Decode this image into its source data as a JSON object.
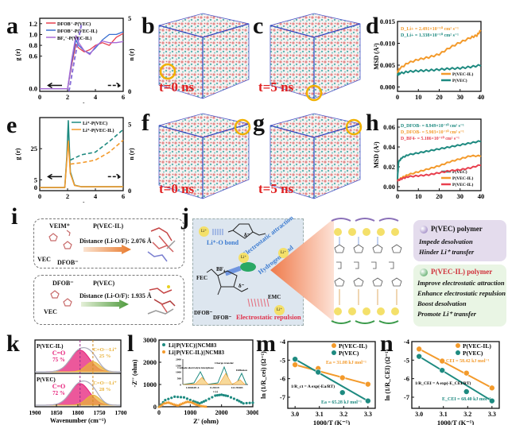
{
  "panels": {
    "a": "a",
    "b": "b",
    "c": "c",
    "d": "d",
    "e": "e",
    "f": "f",
    "g": "g",
    "h": "h",
    "i": "i",
    "j": "j",
    "k": "k",
    "l": "l",
    "m": "m",
    "n": "n"
  },
  "snapshots": {
    "b_time": "t=0 ns",
    "c_time": "t=5 ns",
    "f_time": "t=0 ns",
    "g_time": "t=5 ns"
  },
  "panel_i": {
    "top": {
      "label_a": "VEIM⁺",
      "label_b": "VEC",
      "label_c": "DFOB⁻",
      "title": "P(VEC-IL)",
      "distance": "Distance (Li-O/F): 2.076 Å"
    },
    "bottom": {
      "label_a": "DFOB⁻",
      "label_b": "VEC",
      "title": "P(VEC)",
      "distance": "Distance (Li-O/F): 1.935 Å"
    }
  },
  "panel_j": {
    "li": "Li⁺",
    "li_o_bond": "Li⁺-O bond",
    "electrostatic_attraction": "Electrostatic attraction",
    "hydrogen_bond": "Hydrogen bond",
    "electrostatic_repulsion": "Electrostatic repulsion",
    "fec": "FEC",
    "dfob1": "DFOB⁻",
    "dfob2": "DFOB⁻",
    "emc": "EMC",
    "bf4": "BF₄",
    "delta_neg": "δ⁻",
    "delta_neg2": "δ⁻"
  },
  "panel_j_boxes": {
    "pvec": {
      "title": "P(VEC) polymer",
      "items": [
        "Impede desolvation",
        "Hinder Li⁺ transfer"
      ]
    },
    "pvecil": {
      "title": "P(VEC-IL) polymer",
      "items": [
        "Improve electrostatic attraction",
        "Enhance electrostatic repulsion",
        "Boost desolvation",
        "Promote Li⁺ transfer"
      ]
    }
  },
  "colors": {
    "teal": "#1e8a80",
    "orange": "#f39a2b",
    "red": "#e8404f",
    "purple": "#a86ad6",
    "blue": "#3a6fd0",
    "pink": "#e6207a",
    "gold": "#e9b23a",
    "snap_red": "#e02020",
    "ring": "#f0b000"
  },
  "chart_data": [
    {
      "id": "a",
      "type": "line",
      "xlabel": "r (Å)",
      "ylabel": "g (r)",
      "y2label": "n (r)",
      "xlim": [
        0,
        6
      ],
      "ylim": [
        -0.05,
        1.3
      ],
      "y2lim": [
        0,
        5
      ],
      "xticks": [
        "0",
        "2",
        "4",
        "6"
      ],
      "yticks": [
        "0.0",
        "0.6",
        "0.8",
        "1.0",
        "1.2"
      ],
      "y2ticks": [
        "0",
        "5"
      ],
      "series": [
        {
          "name": "DFOB⁻-P(VEC)",
          "color": "#e8404f",
          "x": [
            0,
            2.0,
            2.3,
            2.6,
            2.8,
            3.2,
            3.6,
            4.0,
            4.5,
            5.0,
            5.5,
            6.0
          ],
          "y": [
            0,
            0,
            0.45,
            0.82,
            0.75,
            0.68,
            0.72,
            0.8,
            0.85,
            0.8,
            0.95,
            1.02
          ]
        },
        {
          "name": "DFOB⁻-P(VEC-IL)",
          "color": "#3a6fd0",
          "x": [
            0,
            2.0,
            2.3,
            2.6,
            2.8,
            3.2,
            3.6,
            4.0,
            4.5,
            5.0,
            5.5,
            6.0
          ],
          "y": [
            0,
            0,
            0.5,
            0.9,
            0.8,
            0.7,
            0.65,
            0.75,
            0.9,
            1.0,
            1.0,
            1.05
          ]
        },
        {
          "name": "BF₄⁻-P(VEC-IL)",
          "color": "#a86ad6",
          "x": [
            0,
            2.0,
            2.3,
            2.6,
            2.8,
            3.2,
            3.6,
            4.0,
            4.5,
            5.0,
            5.5,
            6.0
          ],
          "y": [
            0,
            0,
            0.55,
            0.98,
            0.85,
            0.7,
            0.63,
            0.78,
            0.88,
            0.85,
            0.85,
            0.87
          ]
        }
      ]
    },
    {
      "id": "d",
      "type": "line",
      "xlabel": "Time (ns)",
      "ylabel": "MSD (Å²)",
      "xlim": [
        0,
        40
      ],
      "ylim": [
        -0.001,
        0.015
      ],
      "xticks": [
        "0",
        "10",
        "20",
        "30",
        "40"
      ],
      "yticks": [
        "0.000",
        "0.005",
        "0.010",
        "0.015"
      ],
      "annotations": [
        "D_Li+ = 2.491×10⁻¹⁰ cm² s⁻¹",
        "D_Li+ = 1.338×10⁻¹⁰ cm² s⁻¹"
      ],
      "series": [
        {
          "name": "P(VEC-IL)",
          "color": "#f39a2b",
          "x": [
            0,
            1,
            5,
            10,
            15,
            20,
            25,
            30,
            35,
            38,
            40
          ],
          "y": [
            0.0033,
            0.0042,
            0.0055,
            0.0063,
            0.0068,
            0.0075,
            0.009,
            0.0102,
            0.0113,
            0.0118,
            0.013
          ]
        },
        {
          "name": "P(VEC)",
          "color": "#1e8a80",
          "x": [
            0,
            1,
            5,
            10,
            15,
            20,
            25,
            30,
            35,
            40
          ],
          "y": [
            0.0028,
            0.0031,
            0.0035,
            0.0037,
            0.0038,
            0.004,
            0.0042,
            0.0043,
            0.0046,
            0.005
          ]
        }
      ]
    },
    {
      "id": "e",
      "type": "line",
      "xlabel": "r (Å)",
      "ylabel": "g (r)",
      "y2label": "n (r)",
      "xlim": [
        0,
        6
      ],
      "ylim": [
        -2,
        45
      ],
      "y2lim": [
        0,
        5.5
      ],
      "xticks": [
        "0",
        "2",
        "4",
        "6"
      ],
      "yticks": [
        "0",
        "5",
        "25"
      ],
      "y2ticks": [
        "0",
        "5"
      ],
      "series": [
        {
          "name": "Li⁺-P(VEC)",
          "color": "#1e8a80",
          "x": [
            0,
            1.8,
            1.95,
            2.05,
            2.2,
            2.5,
            3,
            6
          ],
          "y": [
            0,
            0,
            20,
            43,
            10,
            1.5,
            0.5,
            0.5
          ]
        },
        {
          "name": "Li⁺-P(VEC-IL)",
          "color": "#f39a2b",
          "x": [
            0,
            1.8,
            1.95,
            2.05,
            2.2,
            2.5,
            3,
            6
          ],
          "y": [
            0,
            0,
            18,
            30,
            9,
            1.3,
            0.5,
            0.5
          ]
        }
      ]
    },
    {
      "id": "h",
      "type": "line",
      "xlabel": "Time (ns)",
      "ylabel": "MSD (Å²)",
      "xlim": [
        0,
        40
      ],
      "ylim": [
        -0.004,
        0.068
      ],
      "xticks": [
        "0",
        "10",
        "20",
        "30",
        "40"
      ],
      "yticks": [
        "0.00",
        "0.02",
        "0.04",
        "0.06"
      ],
      "annotations": [
        "D_DFOB- = 8.949×10⁻¹⁰ cm² s⁻¹",
        "D_DFOB- = 5.903×10⁻¹⁰ cm² s⁻¹",
        "D_BF4- = 5.186×10⁻¹⁰ cm² s⁻¹"
      ],
      "series": [
        {
          "name": "P(VEC)",
          "color": "#1e8a80",
          "x": [
            0,
            0.5,
            2,
            5,
            10,
            15,
            20,
            25,
            30,
            35,
            40
          ],
          "y": [
            0.008,
            0.025,
            0.029,
            0.032,
            0.034,
            0.036,
            0.038,
            0.04,
            0.042,
            0.044,
            0.046
          ]
        },
        {
          "name": "P(VEC-IL)",
          "color": "#f39a2b",
          "x": [
            0,
            2,
            5,
            10,
            15,
            20,
            25,
            30,
            35,
            40
          ],
          "y": [
            0.006,
            0.009,
            0.012,
            0.015,
            0.018,
            0.021,
            0.025,
            0.028,
            0.031,
            0.031
          ]
        },
        {
          "name": "P(VEC-IL)",
          "color": "#e8404f",
          "x": [
            0,
            2,
            5,
            10,
            15,
            20,
            25,
            30,
            35,
            40
          ],
          "y": [
            0.006,
            0.008,
            0.01,
            0.011,
            0.012,
            0.014,
            0.016,
            0.017,
            0.019,
            0.022
          ]
        }
      ]
    },
    {
      "id": "k",
      "type": "area",
      "xlabel": "Wavenumber (cm⁻¹)",
      "xlim": [
        1900,
        1700
      ],
      "xticks": [
        "1900",
        "1850",
        "1800",
        "1750",
        "1700"
      ],
      "subplots": [
        {
          "name": "P(VEC-IL)",
          "peaks": [
            {
              "label": "C=O",
              "pct": "75 %",
              "center": 1795,
              "color": "#e6207a"
            },
            {
              "label": "C=O···Li⁺",
              "pct": "25 %",
              "center": 1765,
              "color": "#e9b23a"
            }
          ]
        },
        {
          "name": "P(VEC)",
          "peaks": [
            {
              "label": "C=O",
              "pct": "72 %",
              "center": 1795,
              "color": "#e6207a"
            },
            {
              "label": "C=O···Li⁺",
              "pct": "28 %",
              "center": 1765,
              "color": "#e9b23a"
            }
          ]
        }
      ]
    },
    {
      "id": "l",
      "type": "scatter",
      "xlabel": "Z' (ohm)",
      "ylabel": "-Z'' (ohm)",
      "xlim": [
        0,
        3000
      ],
      "ylim": [
        0,
        3000
      ],
      "xticks": [
        "0",
        "1000",
        "2000",
        "3000"
      ],
      "yticks": [
        "0",
        "1000",
        "2000",
        "3000"
      ],
      "inset": {
        "yticks": [
          "0",
          "500",
          "1000",
          "1500",
          "2000"
        ],
        "xticks": [
          "1.00042E-4",
          "0.20119",
          "122.39403"
        ],
        "labels": [
          "Cathode electrolyte interphase",
          "Charge transfer",
          "Diffusion"
        ],
        "xlabel": "τ (s)"
      },
      "series": [
        {
          "name": "Li||P(VEC)||NCM83",
          "color": "#1e8a80",
          "x": [
            0,
            200,
            500,
            800,
            1100,
            1300,
            1500,
            1800,
            2000,
            2200,
            2500,
            2700,
            3000
          ],
          "y": [
            0,
            300,
            450,
            420,
            250,
            150,
            280,
            500,
            540,
            480,
            300,
            150,
            180
          ]
        },
        {
          "name": "Li||P(VEC-IL)||NCM83",
          "color": "#f39a2b",
          "x": [
            0,
            150,
            300,
            450,
            600,
            750,
            900,
            1050,
            1200,
            1350,
            1500
          ],
          "y": [
            0,
            150,
            200,
            120,
            60,
            150,
            230,
            200,
            100,
            40,
            10
          ]
        }
      ]
    },
    {
      "id": "m",
      "type": "scatter",
      "xlabel": "1000/T (K⁻¹)",
      "ylabel": "ln (1/R_cei) (Ω⁻¹)",
      "xlim": [
        2.97,
        3.33
      ],
      "ylim": [
        -7.6,
        -4
      ],
      "xticks": [
        "3.0",
        "3.1",
        "3.2",
        "3.3"
      ],
      "yticks": [
        "-4",
        "-5",
        "-6",
        "-7"
      ],
      "annotations": [
        "Ea = 31.08 kJ mol⁻¹",
        "Ea = 65.28 kJ mol⁻¹",
        "1/R_ct = A exp(-Ea/RT)"
      ],
      "series": [
        {
          "name": "P(VEC-IL)",
          "color": "#f39a2b",
          "x": [
            3.0,
            3.095,
            3.195,
            3.3
          ],
          "y": [
            -5.25,
            -5.45,
            -5.95,
            -6.3
          ]
        },
        {
          "name": "P(VEC)",
          "color": "#1e8a80",
          "x": [
            3.0,
            3.095,
            3.195,
            3.3
          ],
          "y": [
            -4.95,
            -5.65,
            -6.75,
            -7.2
          ]
        }
      ]
    },
    {
      "id": "n",
      "type": "scatter",
      "xlabel": "1000/T (K⁻¹)",
      "ylabel": "ln (1/R_CEI) (Ω⁻¹)",
      "xlim": [
        2.97,
        3.33
      ],
      "ylim": [
        -7.6,
        -4
      ],
      "xticks": [
        "3.0",
        "3.1",
        "3.2",
        "3.3"
      ],
      "yticks": [
        "-4",
        "-5",
        "-6",
        "-7"
      ],
      "annotations": [
        "E_CEI = 58.42 kJ mol⁻¹",
        "E_CEI = 68.40 kJ mol⁻¹",
        "1/R_CEI = A exp(-E_CEI/RT)"
      ],
      "series": [
        {
          "name": "P(VEC-IL)",
          "color": "#f39a2b",
          "x": [
            3.0,
            3.095,
            3.195,
            3.3
          ],
          "y": [
            -4.4,
            -5.05,
            -5.7,
            -6.5
          ]
        },
        {
          "name": "P(VEC)",
          "color": "#1e8a80",
          "x": [
            3.0,
            3.095,
            3.195,
            3.3
          ],
          "y": [
            -4.8,
            -5.55,
            -6.7,
            -7.2
          ]
        }
      ]
    }
  ]
}
